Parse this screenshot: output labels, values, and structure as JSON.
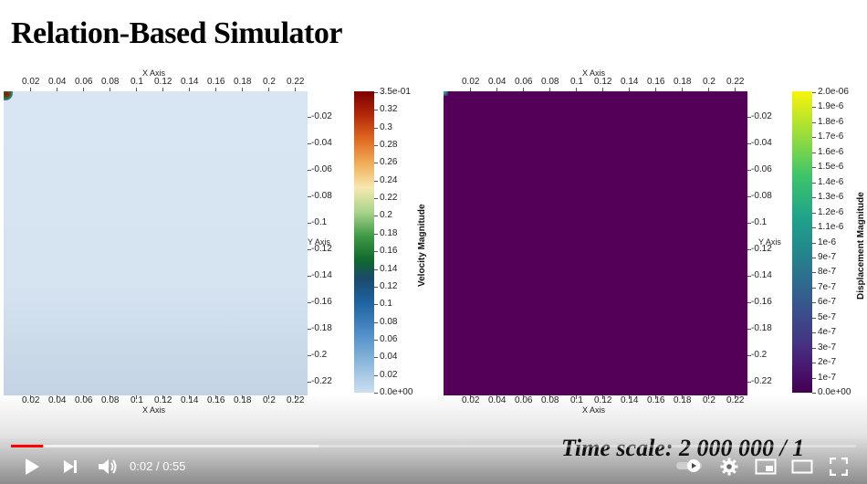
{
  "page": {
    "title": "Relation-Based Simulator",
    "time_scale": "Time scale: 2 000 000 / 1"
  },
  "left_plot": {
    "x_axis_title": "X Axis",
    "y_axis_title": "Y Axis",
    "x_ticks": [
      "0.02",
      "0.04",
      "0.06",
      "0.08",
      "0.1",
      "0.12",
      "0.14",
      "0.16",
      "0.18",
      "0.2",
      "0.22"
    ],
    "y_ticks": [
      "-0.02",
      "-0.04",
      "-0.06",
      "-0.08",
      "-0.1",
      "-0.12",
      "-0.14",
      "-0.16",
      "-0.18",
      "-0.2",
      "-0.22"
    ],
    "colorbar_title": "Velocity Magnitude",
    "colorbar_ticks": [
      "3.5e-01",
      "0.32",
      "0.3",
      "0.28",
      "0.26",
      "0.24",
      "0.22",
      "0.2",
      "0.18",
      "0.16",
      "0.14",
      "0.12",
      "0.1",
      "0.08",
      "0.06",
      "0.04",
      "0.02",
      "0.0e+00"
    ]
  },
  "right_plot": {
    "x_axis_title": "X Axis",
    "y_axis_title": "Y Axis",
    "x_ticks": [
      "0.02",
      "0.04",
      "0.06",
      "0.08",
      "0.1",
      "0.12",
      "0.14",
      "0.16",
      "0.18",
      "0.2",
      "0.22"
    ],
    "y_ticks": [
      "-0.02",
      "-0.04",
      "-0.06",
      "-0.08",
      "-0.1",
      "-0.12",
      "-0.14",
      "-0.16",
      "-0.18",
      "-0.2",
      "-0.22"
    ],
    "colorbar_title": "Displacement Magnitude",
    "colorbar_ticks": [
      "2.0e-06",
      "1.9e-6",
      "1.8e-6",
      "1.7e-6",
      "1.6e-6",
      "1.5e-6",
      "1.4e-6",
      "1.3e-6",
      "1.2e-6",
      "1.1e-6",
      "1e-6",
      "9e-7",
      "8e-7",
      "7e-7",
      "6e-7",
      "5e-7",
      "4e-7",
      "3e-7",
      "2e-7",
      "1e-7",
      "0.0e+00"
    ]
  },
  "player": {
    "current_time": "0:02",
    "separator": "/",
    "duration": "0:55",
    "played_fraction": 0.038,
    "buffered_fraction": 0.364,
    "icons": [
      "play-icon",
      "next-icon",
      "volume-icon",
      "autoplay-toggle-icon",
      "settings-icon",
      "miniplayer-icon",
      "theater-icon",
      "fullscreen-icon"
    ]
  }
}
